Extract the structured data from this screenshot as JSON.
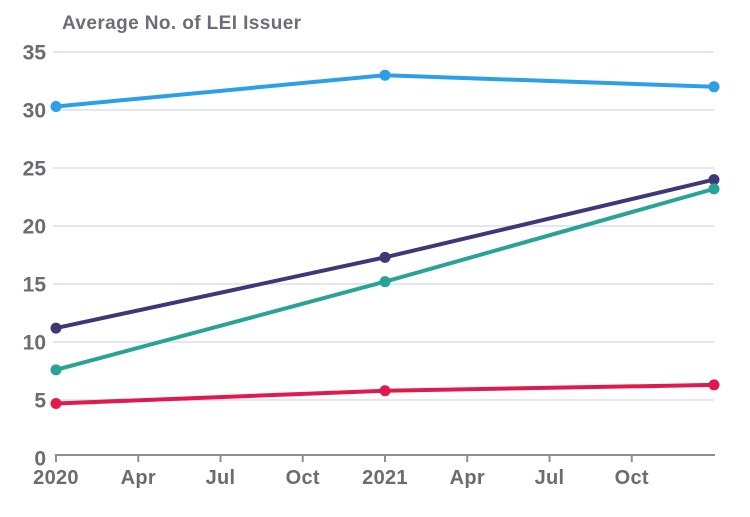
{
  "chart_data": {
    "type": "line",
    "title": "Average No. of LEI Issuer",
    "xlabel": "",
    "ylabel": "",
    "ylim": [
      0,
      35
    ],
    "y_ticks": [
      0,
      5,
      10,
      15,
      20,
      25,
      30,
      35
    ],
    "x_tick_labels": [
      "2020",
      "Apr",
      "Jul",
      "Oct",
      "2021",
      "Apr",
      "Jul",
      "Oct"
    ],
    "x_points": [
      "Jan 2020",
      "Jan 2021",
      "Dec 2021"
    ],
    "grid": "horizontal",
    "legend_position": "none",
    "series": [
      {
        "name": "series-blue",
        "color": "#2b9fe8",
        "values": [
          30.3,
          33.0,
          32.0
        ]
      },
      {
        "name": "series-purple",
        "color": "#3e3877",
        "values": [
          11.2,
          17.3,
          24.0
        ]
      },
      {
        "name": "series-teal",
        "color": "#29a396",
        "values": [
          7.6,
          15.2,
          23.2
        ]
      },
      {
        "name": "series-red",
        "color": "#e01a4f",
        "values": [
          4.7,
          5.8,
          6.3
        ]
      }
    ],
    "colors": {
      "title_text": "#6d6d78",
      "axis_line": "#8d8d96",
      "tick_label": "#6b6b76",
      "gridline": "#e4e7f3",
      "background": "#ffffff"
    }
  }
}
